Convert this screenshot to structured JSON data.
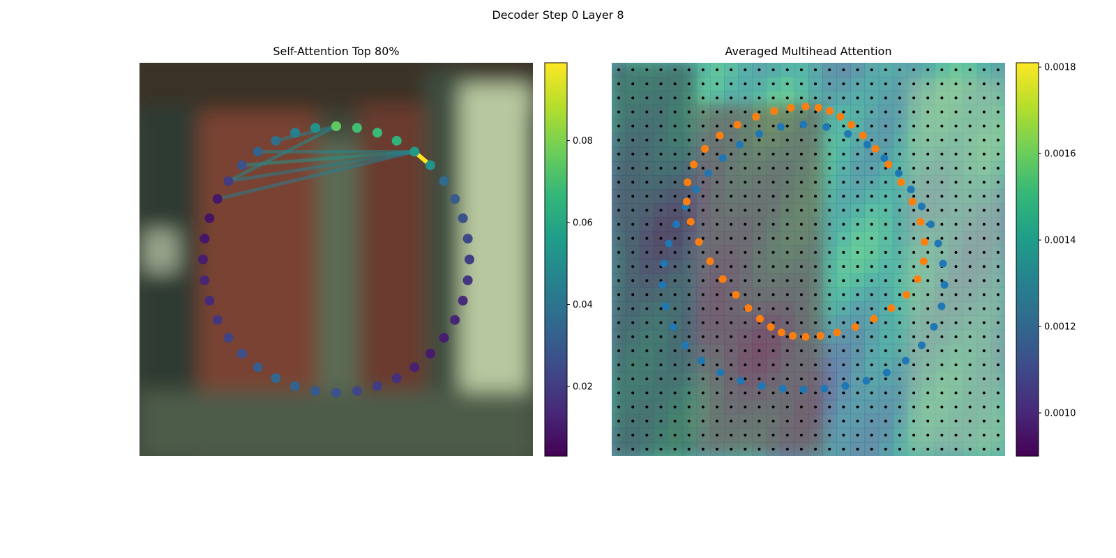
{
  "figure_title": "Decoder Step 0 Layer 8",
  "colors": {
    "viridis": [
      "#440154",
      "#482878",
      "#3e4a89",
      "#31688e",
      "#26828e",
      "#1f9e89",
      "#35b779",
      "#6ece58",
      "#b5de2b",
      "#fde725"
    ],
    "blue_points": "#1f77b4",
    "orange_points": "#ff7f0e",
    "grid_dots": "#000000"
  },
  "chart_data": [
    {
      "type": "scatter",
      "title": "Self-Attention Top 80%",
      "description_kind": "attention graph over image",
      "colorbar": {
        "min": 0.003,
        "max": 0.099,
        "ticks": [
          0.02,
          0.04,
          0.06,
          0.08
        ],
        "tick_labels": [
          "0.02",
          "0.04",
          "0.06",
          "0.08"
        ]
      },
      "point_values": [
        0.075,
        0.07,
        0.068,
        0.065,
        0.055,
        0.052,
        0.036,
        0.031,
        0.027,
        0.024,
        0.021,
        0.018,
        0.015,
        0.013,
        0.011,
        0.01,
        0.012,
        0.016,
        0.02,
        0.023,
        0.027,
        0.03,
        0.033,
        0.035,
        0.031,
        0.026,
        0.022,
        0.018,
        0.015,
        0.013,
        0.011,
        0.009,
        0.008,
        0.009,
        0.02,
        0.027,
        0.033,
        0.038,
        0.045,
        0.052
      ],
      "edges": [
        {
          "from": 5,
          "to": 4,
          "value": 0.099
        },
        {
          "from": 4,
          "to": 35,
          "value": 0.052
        },
        {
          "from": 4,
          "to": 36,
          "value": 0.047
        },
        {
          "from": 4,
          "to": 34,
          "value": 0.044
        },
        {
          "from": 4,
          "to": 33,
          "value": 0.043
        },
        {
          "from": 0,
          "to": 34,
          "value": 0.049
        },
        {
          "from": 0,
          "to": 37,
          "value": 0.045
        }
      ]
    },
    {
      "type": "heatmap",
      "title": "Averaged Multihead Attention",
      "grid_size": 28,
      "colorbar": {
        "min": 0.0009,
        "max": 0.00181,
        "ticks": [
          0.001,
          0.0012,
          0.0014,
          0.0016,
          0.0018
        ],
        "tick_labels": [
          "0.0010",
          "0.0012",
          "0.0014",
          "0.0016",
          "0.0018"
        ]
      },
      "blue_series_count": 40,
      "orange_series_count": 40
    }
  ]
}
